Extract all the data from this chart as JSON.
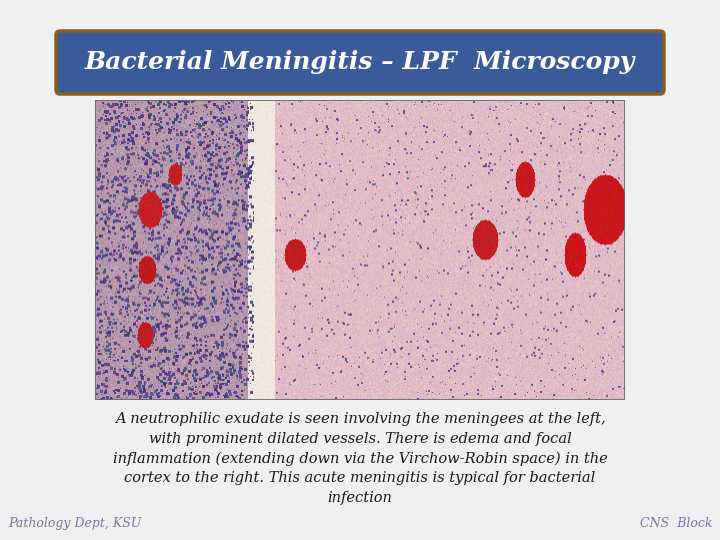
{
  "title": "Bacterial Meningitis – LPF  Microscopy",
  "title_bg_color": "#3a5a9a",
  "title_border_color": "#8b5e1a",
  "title_text_color": "#ffffff",
  "title_fontsize": 18,
  "body_text": "A neutrophilic exudate is seen involving the meningees at the left,\nwith prominent dilated vessels. There is edema and focal\ninflammation (extending down via the Virchow-Robin space) in the\ncortex to the right. This acute meningitis is typical for bacterial\ninfection",
  "body_text_color": "#1a1a1a",
  "body_fontsize": 10.5,
  "footer_left": "Pathology Dept, KSU",
  "footer_right": "CNS  Block",
  "footer_color": "#7777aa",
  "footer_fontsize": 9,
  "background_color": "#f0f0f0",
  "image_border_color": "#666666"
}
